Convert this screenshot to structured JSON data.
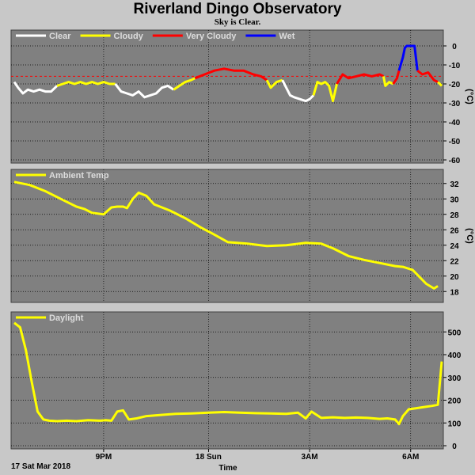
{
  "header": {
    "title": "Riverland Dingo Observatory",
    "subtitle": "Sky is Clear."
  },
  "footer": {
    "date_label": "17 Sat Mar 2018",
    "time_label": "Time"
  },
  "x_axis": {
    "ticks": [
      {
        "t": 4.6,
        "label": "9PM"
      },
      {
        "t": 10.0,
        "label": "18 Sun"
      },
      {
        "t": 15.2,
        "label": "3AM"
      },
      {
        "t": 20.4,
        "label": "6AM"
      }
    ],
    "range": [
      0,
      22
    ]
  },
  "chart_data": [
    {
      "type": "line",
      "name": "sky",
      "unit": "(°C)",
      "ylim": [
        -60,
        5
      ],
      "yticks": [
        0,
        -10,
        -20,
        -30,
        -40,
        -50,
        -60
      ],
      "threshold": -16,
      "colors": {
        "Clear": "#ffffff",
        "Cloudy": "#ffff00",
        "Very Cloudy": "#ff0000",
        "Wet": "#0000ff",
        "threshold": "#ff0000"
      },
      "legend": [
        "Clear",
        "Cloudy",
        "Very Cloudy",
        "Wet"
      ],
      "segments": [
        {
          "cat": "Clear",
          "x": [
            0,
            0.2,
            0.45,
            0.7,
            1,
            1.3,
            1.6,
            1.9,
            2.2
          ],
          "y": [
            -19,
            -22,
            -25,
            -23,
            -24,
            -23,
            -24,
            -24,
            -21
          ]
        },
        {
          "cat": "Cloudy",
          "x": [
            2.2,
            2.5,
            2.8,
            3.1,
            3.4,
            3.7,
            4,
            4.3,
            4.6,
            4.9,
            5.2
          ],
          "y": [
            -21,
            -20,
            -19,
            -20,
            -19,
            -20,
            -19,
            -20,
            -19,
            -20,
            -20
          ]
        },
        {
          "cat": "Clear",
          "x": [
            5.2,
            5.5,
            5.8,
            6.1,
            6.4,
            6.7,
            7,
            7.3,
            7.6,
            7.9,
            8.2
          ],
          "y": [
            -20,
            -24,
            -25,
            -26,
            -24,
            -27,
            -26,
            -25,
            -22,
            -21,
            -23
          ]
        },
        {
          "cat": "Cloudy",
          "x": [
            8.2,
            8.5,
            8.8,
            9.1,
            9.3
          ],
          "y": [
            -23,
            -21,
            -19,
            -18,
            -17
          ]
        },
        {
          "cat": "Very Cloudy",
          "x": [
            9.3,
            9.8,
            10.3,
            10.8,
            11.3,
            11.8,
            12.3,
            12.7,
            13
          ],
          "y": [
            -17,
            -15,
            -13,
            -12,
            -13,
            -13,
            -15,
            -16,
            -18
          ]
        },
        {
          "cat": "Cloudy",
          "x": [
            13,
            13.2,
            13.5,
            13.8
          ],
          "y": [
            -18,
            -22,
            -19,
            -18
          ]
        },
        {
          "cat": "Clear",
          "x": [
            13.8,
            14,
            14.2,
            14.4,
            14.7,
            15,
            15.2,
            15.4
          ],
          "y": [
            -18,
            -22,
            -26,
            -27,
            -28,
            -29,
            -28,
            -26
          ]
        },
        {
          "cat": "Cloudy",
          "x": [
            15.4,
            15.6,
            15.8,
            16,
            16.2,
            16.4,
            16.6
          ],
          "y": [
            -26,
            -19,
            -20,
            -19,
            -21,
            -29,
            -20
          ]
        },
        {
          "cat": "Very Cloudy",
          "x": [
            16.6,
            16.9,
            17.2,
            17.6,
            18,
            18.4,
            18.8,
            19
          ],
          "y": [
            -20,
            -15,
            -17,
            -16,
            -15,
            -16,
            -15,
            -16
          ]
        },
        {
          "cat": "Cloudy",
          "x": [
            19,
            19.1,
            19.3,
            19.5
          ],
          "y": [
            -16,
            -21,
            -19,
            -20
          ]
        },
        {
          "cat": "Very Cloudy",
          "x": [
            19.5,
            19.7,
            19.8
          ],
          "y": [
            -20,
            -17,
            -13
          ]
        },
        {
          "cat": "Wet",
          "x": [
            19.8,
            20,
            20.1,
            20.2,
            20.4,
            20.6,
            20.75
          ],
          "y": [
            -13,
            -6,
            -1,
            0,
            0,
            0,
            -13
          ]
        },
        {
          "cat": "Very Cloudy",
          "x": [
            20.75,
            21,
            21.3,
            21.6,
            21.8
          ],
          "y": [
            -13,
            -15,
            -14,
            -18,
            -19
          ]
        },
        {
          "cat": "Cloudy",
          "x": [
            21.8,
            22
          ],
          "y": [
            -19,
            -21
          ]
        }
      ]
    },
    {
      "type": "line",
      "name": "Ambient Temp",
      "unit": "(°C)",
      "ylim": [
        17,
        33
      ],
      "yticks": [
        32,
        30,
        28,
        26,
        24,
        22,
        20,
        18
      ],
      "colors": {
        "line": "#ffff00"
      },
      "legend": [
        "Ambient Temp"
      ],
      "x": [
        0,
        0.8,
        1.6,
        2.4,
        3.2,
        3.6,
        4,
        4.6,
        5,
        5.3,
        5.6,
        5.8,
        6.1,
        6.4,
        6.8,
        7.2,
        8,
        8.8,
        9.6,
        10.2,
        11,
        12,
        13,
        14,
        15,
        15.8,
        16.4,
        17.2,
        18,
        18.8,
        19.6,
        20,
        20.5,
        21.2,
        21.6,
        21.8
      ],
      "y": [
        32.2,
        31.8,
        31,
        30,
        29,
        28.7,
        28.2,
        28,
        28.9,
        29,
        29,
        28.8,
        30,
        30.8,
        30.4,
        29.3,
        28.5,
        27.5,
        26.3,
        25.5,
        24.4,
        24.2,
        23.9,
        24,
        24.3,
        24.2,
        23.6,
        22.6,
        22.1,
        21.7,
        21.3,
        21.2,
        20.8,
        19,
        18.4,
        18.7
      ]
    },
    {
      "type": "line",
      "name": "Daylight",
      "ylim": [
        0,
        560
      ],
      "yticks": [
        500,
        400,
        300,
        200,
        100,
        0
      ],
      "colors": {
        "line": "#ffff00"
      },
      "legend": [
        "Daylight"
      ],
      "x": [
        0,
        0.3,
        0.6,
        0.9,
        1.2,
        1.5,
        1.8,
        2.2,
        2.7,
        3.2,
        3.8,
        4.4,
        4.7,
        5,
        5.3,
        5.6,
        5.9,
        6.3,
        6.8,
        7.5,
        8.3,
        9.1,
        10,
        10.8,
        11.6,
        12.4,
        13.2,
        14,
        14.6,
        15,
        15.3,
        15.8,
        16.4,
        17,
        17.6,
        18.2,
        18.8,
        19.2,
        19.6,
        19.8,
        20,
        20.3,
        20.7,
        21.1,
        21.5,
        21.8,
        22
      ],
      "y": [
        540,
        520,
        420,
        280,
        150,
        115,
        110,
        108,
        110,
        108,
        112,
        110,
        112,
        110,
        150,
        155,
        115,
        120,
        130,
        135,
        140,
        142,
        145,
        148,
        145,
        143,
        142,
        140,
        145,
        120,
        150,
        122,
        125,
        122,
        124,
        122,
        118,
        120,
        115,
        95,
        130,
        160,
        165,
        170,
        175,
        180,
        370
      ]
    }
  ]
}
